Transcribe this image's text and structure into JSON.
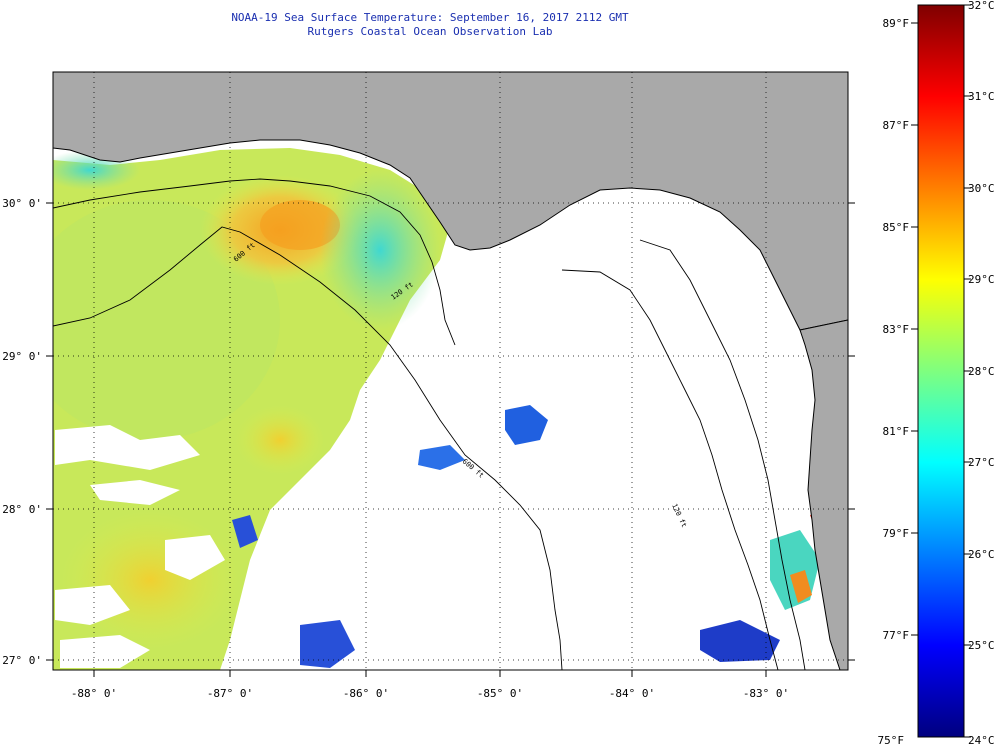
{
  "title": {
    "line1": "NOAA-19 Sea Surface Temperature:  September 16, 2017 2112 GMT",
    "line2": "Rutgers Coastal Ocean Observation Lab"
  },
  "map": {
    "lon_range": [
      -88.3,
      -82.6
    ],
    "lat_range": [
      26.95,
      30.85
    ],
    "lon_ticks": [
      "-88° 0'",
      "-87° 0'",
      "-86° 0'",
      "-85° 0'",
      "-84° 0'",
      "-83° 0'"
    ],
    "lon_tick_values": [
      -88,
      -87,
      -86,
      -85,
      -84,
      -83
    ],
    "lat_ticks": [
      "30° 0'",
      "29° 0'",
      "28° 0'",
      "27° 0'"
    ],
    "lat_tick_values": [
      30,
      29,
      28,
      27
    ],
    "gridlines": true,
    "land_color": "#a9a9a9",
    "cloud_color": "#ffffff",
    "contours": [
      {
        "label": "120 ft"
      },
      {
        "label": "600 ft"
      },
      {
        "label": "600 ft"
      },
      {
        "label": "120 ft"
      }
    ]
  },
  "colorbar": {
    "celsius": [
      "32°C",
      "31°C",
      "30°C",
      "29°C",
      "28°C",
      "27°C",
      "26°C",
      "25°C",
      "24°C"
    ],
    "fahrenheit": [
      "89°F",
      "87°F",
      "85°F",
      "83°F",
      "81°F",
      "79°F",
      "77°F",
      "75°F"
    ],
    "range_c": [
      24,
      32
    ],
    "colors": [
      "#00007f",
      "#0000ff",
      "#007fff",
      "#00ffff",
      "#7fff7f",
      "#ffff00",
      "#ff7f00",
      "#ff0000",
      "#7f0000"
    ]
  }
}
